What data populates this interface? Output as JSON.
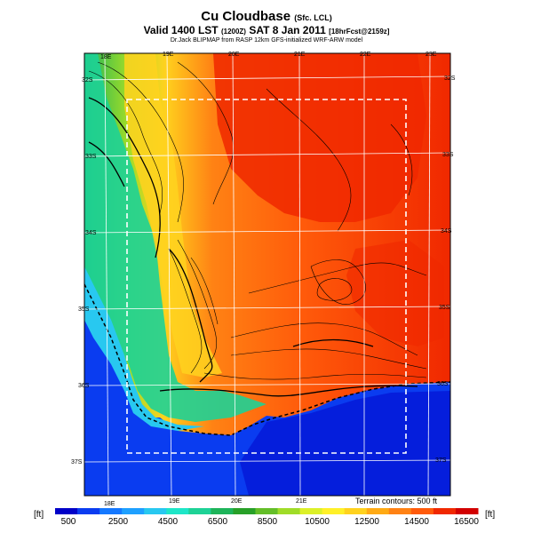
{
  "title": {
    "main": "Cu Cloudbase",
    "main_suffix": "(Sfc. LCL)",
    "valid_line": "Valid 1400 LST",
    "valid_code": "(1200Z)",
    "valid_date": "SAT 8 Jan 2011",
    "valid_fcst": "[18hrFcst@2159z]",
    "source": "Dr.Jack BLIPMAP from RASP 12km GFS-initialized WRF-ARW model"
  },
  "longitude_labels_top": [
    "18E",
    "19E",
    "20E",
    "21E",
    "22E",
    "23E"
  ],
  "longitude_labels_bottom": [
    "18E",
    "19E",
    "20E",
    "21E"
  ],
  "latitude_labels_left": [
    "32S",
    "33S",
    "34S",
    "35S",
    "36S",
    "37S"
  ],
  "latitude_labels_right": [
    "32S",
    "33S",
    "34S",
    "35S",
    "36S",
    "37S"
  ],
  "terrain_note": "Terrain contours: 500 ft",
  "colorbar": {
    "unit": "[ft]",
    "tick_labels": [
      "500",
      "2500",
      "4500",
      "6500",
      "8500",
      "10500",
      "12500",
      "14500",
      "16500"
    ],
    "colors": [
      "#0000c8",
      "#0a3cf0",
      "#1478ff",
      "#1ea0ff",
      "#28c8f0",
      "#1ee6c8",
      "#1ed296",
      "#1eb45a",
      "#28a028",
      "#64be28",
      "#a0dc28",
      "#dcf028",
      "#fff028",
      "#ffd21e",
      "#ffaa14",
      "#ff8214",
      "#ff5a0a",
      "#f02800",
      "#d20000"
    ]
  }
}
